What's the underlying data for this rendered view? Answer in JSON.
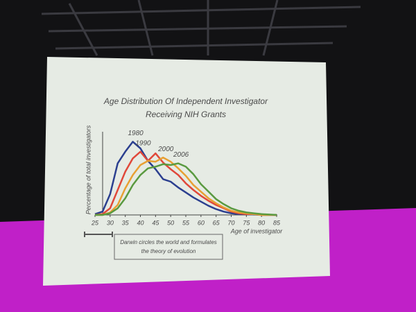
{
  "chart_data": {
    "type": "line",
    "title": [
      "Age Distribution Of Independent Investigator",
      "Receiving NIH Grants"
    ],
    "y_label": "Percentage of total investigators",
    "x_label": "Age of investigator",
    "annotation": [
      "Darwin circles the world and formulates",
      "the theory of evolution"
    ],
    "x": [
      25,
      27.5,
      30,
      32.5,
      35,
      37.5,
      40,
      42.5,
      45,
      47.5,
      50,
      52.5,
      55,
      57.5,
      60,
      62.5,
      65,
      67.5,
      70,
      72.5,
      75,
      77.5,
      80,
      82.5,
      85
    ],
    "series": [
      {
        "name": "1980",
        "color": "#2b3f8f",
        "values": [
          0.1,
          0.4,
          2.5,
          6.2,
          7.6,
          8.8,
          8.0,
          6.5,
          5.5,
          4.3,
          4.0,
          3.3,
          2.7,
          2.1,
          1.6,
          1.1,
          0.7,
          0.4,
          0.2,
          0.1,
          0.1,
          0.05,
          0,
          0,
          0
        ]
      },
      {
        "name": "1990",
        "color": "#e0483a",
        "values": [
          0,
          0.1,
          0.8,
          3.0,
          5.2,
          6.8,
          7.6,
          6.5,
          7.4,
          6.3,
          5.5,
          4.8,
          3.8,
          3.0,
          2.3,
          1.7,
          1.2,
          0.8,
          0.4,
          0.2,
          0.1,
          0.1,
          0,
          0,
          0
        ]
      },
      {
        "name": "2000",
        "color": "#e8a033",
        "values": [
          0,
          0,
          0.3,
          1.2,
          3.2,
          4.8,
          6.0,
          6.5,
          6.4,
          6.9,
          6.4,
          5.6,
          4.7,
          3.6,
          2.8,
          2.0,
          1.4,
          0.9,
          0.5,
          0.3,
          0.2,
          0.1,
          0,
          0,
          0
        ]
      },
      {
        "name": "2006",
        "color": "#5a9a40",
        "values": [
          0,
          0,
          0.2,
          0.8,
          2.0,
          3.6,
          4.8,
          5.6,
          5.8,
          6.1,
          6.0,
          6.2,
          5.8,
          4.9,
          3.7,
          2.8,
          1.9,
          1.3,
          0.8,
          0.5,
          0.3,
          0.2,
          0.1,
          0.05,
          0
        ]
      }
    ],
    "xlim": [
      25,
      85
    ],
    "xticks": [
      25,
      30,
      35,
      40,
      45,
      50,
      55,
      60,
      65,
      70,
      75,
      80,
      85
    ],
    "ylim": [
      0,
      10
    ]
  }
}
